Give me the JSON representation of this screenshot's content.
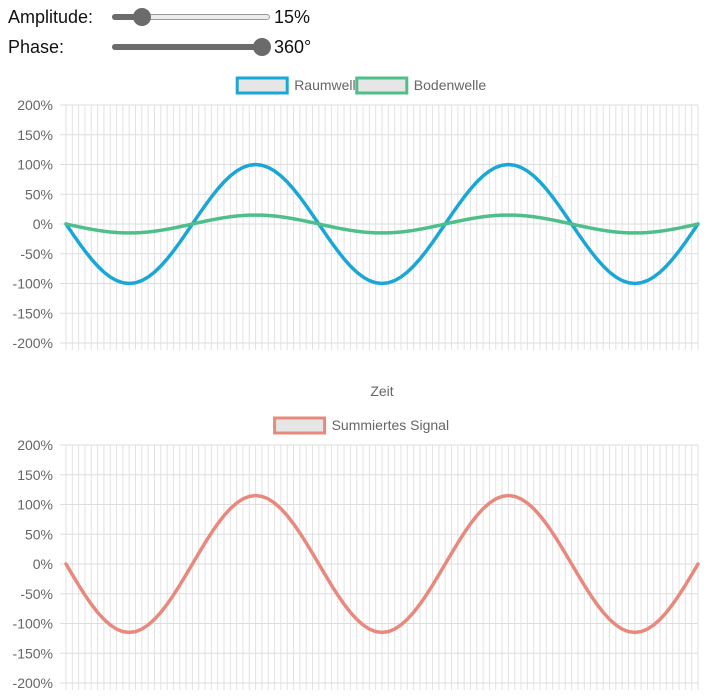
{
  "controls": {
    "amplitude": {
      "label": "Amplitude:",
      "value": 15,
      "min": 0,
      "max": 100,
      "display": "15%"
    },
    "phase": {
      "label": "Phase:",
      "value": 360,
      "min": 0,
      "max": 360,
      "display": "360°"
    }
  },
  "chart_data": [
    {
      "type": "line",
      "xlabel": "Zeit",
      "ylabel": "",
      "ylim": [
        -200,
        200
      ],
      "yticks": [
        "200%",
        "150%",
        "100%",
        "50%",
        "0%",
        "-50%",
        "-100%",
        "-150%",
        "-200%"
      ],
      "x_samples": 101,
      "cycles": 2.5,
      "grid": true,
      "legend_position": "top",
      "series": [
        {
          "name": "Raumwelle",
          "color": "#1aa7d6",
          "amplitude": 100,
          "phase_deg": 360
        },
        {
          "name": "Bodenwelle",
          "color": "#4ebf8a",
          "amplitude": 15,
          "phase_deg": 0
        }
      ]
    },
    {
      "type": "line",
      "xlabel": "",
      "ylabel": "",
      "ylim": [
        -200,
        200
      ],
      "yticks": [
        "200%",
        "150%",
        "100%",
        "50%",
        "0%",
        "-50%",
        "-100%",
        "-150%",
        "-200%"
      ],
      "x_samples": 101,
      "cycles": 2.5,
      "grid": true,
      "legend_position": "top",
      "series": [
        {
          "name": "Summiertes Signal",
          "color": "#e8897d",
          "amplitude": 115,
          "phase_deg": 0
        }
      ]
    }
  ]
}
